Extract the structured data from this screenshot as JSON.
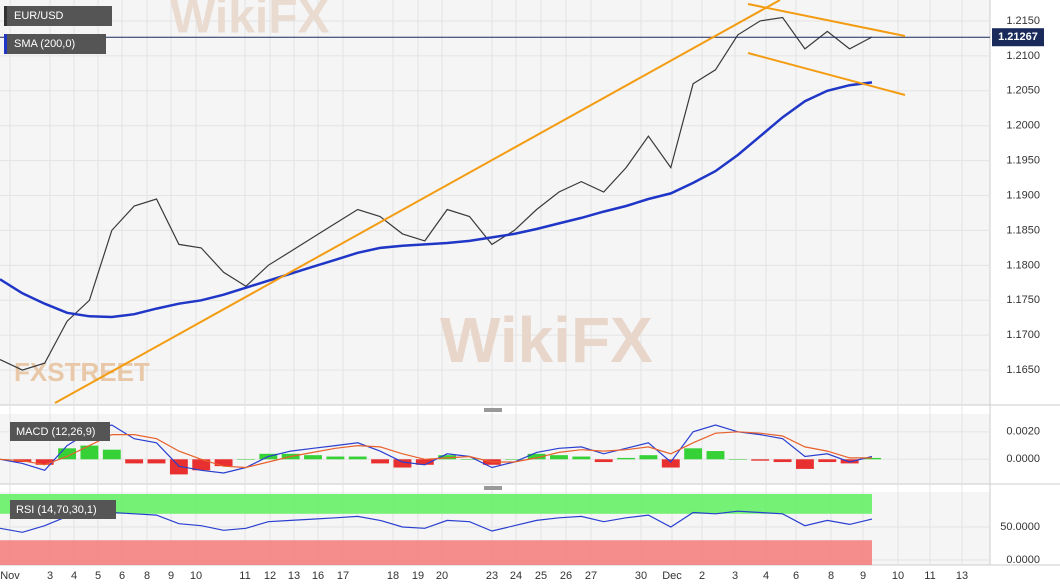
{
  "chart_data": [
    {
      "type": "line",
      "title": "EUR/USD",
      "series": [
        {
          "name": "EUR/USD",
          "color": "#3a3a3a",
          "values": [
            1.1665,
            1.165,
            1.166,
            1.172,
            1.175,
            1.185,
            1.1885,
            1.1895,
            1.183,
            1.1825,
            1.179,
            1.177,
            1.18,
            1.182,
            1.184,
            1.186,
            1.188,
            1.187,
            1.1845,
            1.1835,
            1.188,
            1.187,
            1.183,
            1.185,
            1.188,
            1.1905,
            1.192,
            1.1905,
            1.194,
            1.1985,
            1.194,
            1.206,
            1.208,
            1.213,
            1.215,
            1.2155,
            1.211,
            1.2135,
            1.211,
            1.2127
          ]
        },
        {
          "name": "SMA (200,0)",
          "color": "#1f36c7",
          "values": [
            1.178,
            1.176,
            1.1745,
            1.1732,
            1.1727,
            1.1726,
            1.173,
            1.1738,
            1.1745,
            1.175,
            1.1758,
            1.1768,
            1.1778,
            1.1788,
            1.1798,
            1.1808,
            1.1818,
            1.1825,
            1.1828,
            1.183,
            1.1832,
            1.1835,
            1.184,
            1.1845,
            1.1852,
            1.186,
            1.1868,
            1.1877,
            1.1885,
            1.1895,
            1.1903,
            1.1918,
            1.1935,
            1.1958,
            1.1985,
            1.2012,
            1.2035,
            1.205,
            1.2058,
            1.2062
          ]
        }
      ],
      "last_price": {
        "value": 1.21267,
        "label": "1.21267"
      },
      "ylim": [
        1.16,
        1.218
      ],
      "yticks": [
        {
          "value": 1.165,
          "label": "1.1650"
        },
        {
          "value": 1.17,
          "label": "1.1700"
        },
        {
          "value": 1.175,
          "label": "1.1750"
        },
        {
          "value": 1.18,
          "label": "1.1800"
        },
        {
          "value": 1.185,
          "label": "1.1850"
        },
        {
          "value": 1.19,
          "label": "1.1900"
        },
        {
          "value": 1.195,
          "label": "1.1950"
        },
        {
          "value": 1.2,
          "label": "1.2000"
        },
        {
          "value": 1.205,
          "label": "1.2050"
        },
        {
          "value": 1.21,
          "label": "1.2100"
        },
        {
          "value": 1.215,
          "label": "1.2150"
        }
      ],
      "x_labels": [
        "Nov",
        "3",
        "4",
        "5",
        "6",
        "8",
        "9",
        "10",
        "11",
        "12",
        "13",
        "16",
        "17",
        "18",
        "19",
        "20",
        "23",
        "24",
        "25",
        "26",
        "27",
        "30",
        "Dec",
        "2",
        "3",
        "4",
        "6",
        "8",
        "9",
        "10",
        "11",
        "13"
      ],
      "watermark": "WikiFX",
      "logo": "FXSTREET",
      "grid": true
    },
    {
      "type": "macd",
      "title": "MACD (12,26,9)",
      "series": [
        {
          "name": "Histogram",
          "style": "bar",
          "up_color": "#36d136",
          "down_color": "#e83030",
          "values": [
            0,
            -0.0002,
            -0.0004,
            0.0008,
            0.001,
            0.0007,
            -0.0003,
            -0.0003,
            -0.0011,
            -0.0008,
            -0.0005,
            0,
            0.0004,
            0.0004,
            0.0003,
            0.0002,
            0.0002,
            -0.0003,
            -0.0006,
            -0.0004,
            0.0003,
            0,
            -0.0004,
            0,
            0.0004,
            0.0003,
            0.0002,
            -0.0002,
            0.0001,
            0.0003,
            -0.0006,
            0.0008,
            0.0006,
            0,
            -0.0001,
            -0.0002,
            -0.0007,
            -0.0002,
            -0.0003,
            0.0001
          ]
        },
        {
          "name": "MACD",
          "style": "line",
          "color": "#2a3fd0",
          "values": [
            0,
            -0.0003,
            -0.0008,
            0.001,
            0.002,
            0.0025,
            0.0015,
            0.0012,
            -0.0005,
            -0.0008,
            -0.001,
            -0.0006,
            0.0002,
            0.0006,
            0.0008,
            0.001,
            0.0012,
            0.0006,
            -0.0002,
            -0.0004,
            0.0004,
            0.0002,
            -0.0006,
            -0.0002,
            0.0005,
            0.0008,
            0.0009,
            0.0004,
            0.0008,
            0.0012,
            -0.0002,
            0.002,
            0.0025,
            0.002,
            0.0018,
            0.0015,
            0.0002,
            0.0004,
            -0.0002,
            0.0002
          ]
        },
        {
          "name": "Signal",
          "style": "line",
          "color": "#e8602a",
          "values": [
            0,
            -0.0001,
            -0.0004,
            0.0002,
            0.001,
            0.0018,
            0.0018,
            0.0015,
            0.0006,
            0,
            -0.0005,
            -0.0006,
            -0.0002,
            0.0002,
            0.0005,
            0.0008,
            0.001,
            0.0009,
            0.0004,
            0,
            0.0001,
            0.0002,
            -0.0002,
            -0.0002,
            0.0001,
            0.0005,
            0.0007,
            0.0006,
            0.0007,
            0.0009,
            0.0004,
            0.0012,
            0.0019,
            0.002,
            0.0019,
            0.0017,
            0.0009,
            0.0006,
            0.0001,
            0.0001
          ]
        }
      ],
      "ylim": [
        -0.0018,
        0.0033
      ],
      "yticks": [
        {
          "value": 0,
          "label": "0.0000"
        },
        {
          "value": 0.002,
          "label": "0.0020"
        }
      ]
    },
    {
      "type": "rsi",
      "title": "RSI (14,70,30,1)",
      "series": [
        {
          "name": "RSI",
          "color": "#2a3fd0",
          "values": [
            48,
            42,
            52,
            66,
            70,
            72,
            70,
            68,
            55,
            52,
            45,
            48,
            58,
            60,
            62,
            64,
            66,
            60,
            50,
            48,
            60,
            58,
            44,
            52,
            60,
            64,
            66,
            58,
            64,
            68,
            50,
            72,
            70,
            74,
            72,
            70,
            52,
            60,
            54,
            62
          ]
        }
      ],
      "overbought": 70,
      "oversold": 30,
      "overbought_color": "#5ef05e",
      "oversold_color": "#f57a7a",
      "ylim": [
        -7.5,
        103
      ],
      "yticks": [
        {
          "value": 0,
          "label": "0.0000"
        },
        {
          "value": 50,
          "label": "50.0000"
        }
      ]
    }
  ]
}
